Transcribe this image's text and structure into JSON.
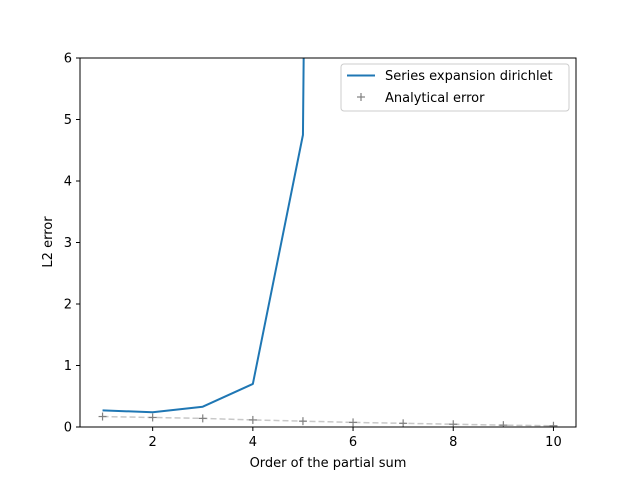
{
  "chart_data": {
    "type": "line",
    "title": "",
    "xlabel": "Order of the partial sum",
    "ylabel": "L2 error",
    "xlim": [
      0.55,
      10.45
    ],
    "ylim": [
      0,
      6
    ],
    "xticks": [
      2,
      4,
      6,
      8,
      10
    ],
    "yticks": [
      0,
      1,
      2,
      3,
      4,
      5,
      6
    ],
    "grid": false,
    "legend_position": "top-right",
    "series": [
      {
        "name": "Series expansion dirichlet",
        "style": "solid-line",
        "color": "#1f77b4",
        "x": [
          1,
          2,
          3,
          4,
          5,
          5.02
        ],
        "y": [
          0.27,
          0.24,
          0.33,
          0.7,
          4.75,
          6.5
        ]
      },
      {
        "name": "Analytical error",
        "style": "plus-markers-dashed",
        "color": "#808080",
        "line_color": "#c8c8c8",
        "x": [
          1,
          2,
          3,
          4,
          5,
          6,
          7,
          8,
          9,
          10
        ],
        "y": [
          0.17,
          0.155,
          0.14,
          0.115,
          0.095,
          0.075,
          0.06,
          0.045,
          0.03,
          0.02
        ]
      }
    ]
  }
}
